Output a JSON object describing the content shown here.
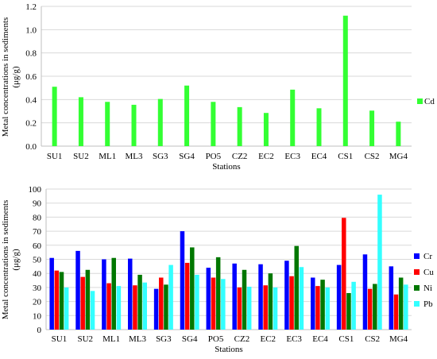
{
  "chart_data": [
    {
      "type": "bar",
      "categories": [
        "SU1",
        "SU2",
        "ML1",
        "ML3",
        "SG3",
        "SG4",
        "PO5",
        "CZ2",
        "EC2",
        "EC3",
        "EC4",
        "CS1",
        "CS2",
        "MG4"
      ],
      "series": [
        {
          "name": "Cd",
          "color": "#33ff33",
          "values": [
            0.51,
            0.42,
            0.38,
            0.355,
            0.405,
            0.52,
            0.38,
            0.335,
            0.285,
            0.485,
            0.325,
            1.12,
            0.305,
            0.21
          ]
        }
      ],
      "ylabel": "Metal concentrations in sediments (μg/g)",
      "xlabel": "Stations",
      "ylim": [
        0,
        1.2
      ],
      "yticks": [
        "0.0",
        "0.2",
        "0.4",
        "0.6",
        "0.8",
        "1.0",
        "1.2"
      ],
      "grid": true,
      "legend": "right"
    },
    {
      "type": "bar",
      "categories": [
        "SU1",
        "SU2",
        "ML1",
        "ML3",
        "SG3",
        "SG4",
        "PO5",
        "CZ2",
        "EC2",
        "EC3",
        "EC4",
        "CS1",
        "CS2",
        "MG4"
      ],
      "series": [
        {
          "name": "Cr",
          "color": "#0000ff",
          "values": [
            51,
            56,
            50,
            50.5,
            29,
            70,
            44,
            47,
            46.5,
            49,
            37,
            46,
            53.5,
            45
          ]
        },
        {
          "name": "Cu",
          "color": "#ff0000",
          "values": [
            42,
            37.5,
            33,
            31.5,
            37,
            47.5,
            37,
            30,
            31.5,
            38,
            31,
            79.5,
            29,
            25
          ]
        },
        {
          "name": "Ni",
          "color": "#007700",
          "values": [
            41,
            42.5,
            51,
            39,
            32,
            58.5,
            51.5,
            42.5,
            40,
            59.5,
            35.5,
            26,
            32.5,
            37
          ]
        },
        {
          "name": "Pb",
          "color": "#33ffff",
          "values": [
            30,
            27.5,
            31,
            33.5,
            46,
            39,
            36,
            30.5,
            30,
            44.5,
            30,
            34,
            96,
            32
          ]
        }
      ],
      "ylabel": "Metal concentrations in sediments (μg/g)",
      "xlabel": "Stations",
      "ylim": [
        0,
        100
      ],
      "yticks": [
        "0",
        "10",
        "20",
        "30",
        "40",
        "50",
        "60",
        "70",
        "80",
        "90",
        "100"
      ],
      "grid": true,
      "legend": "right"
    }
  ]
}
